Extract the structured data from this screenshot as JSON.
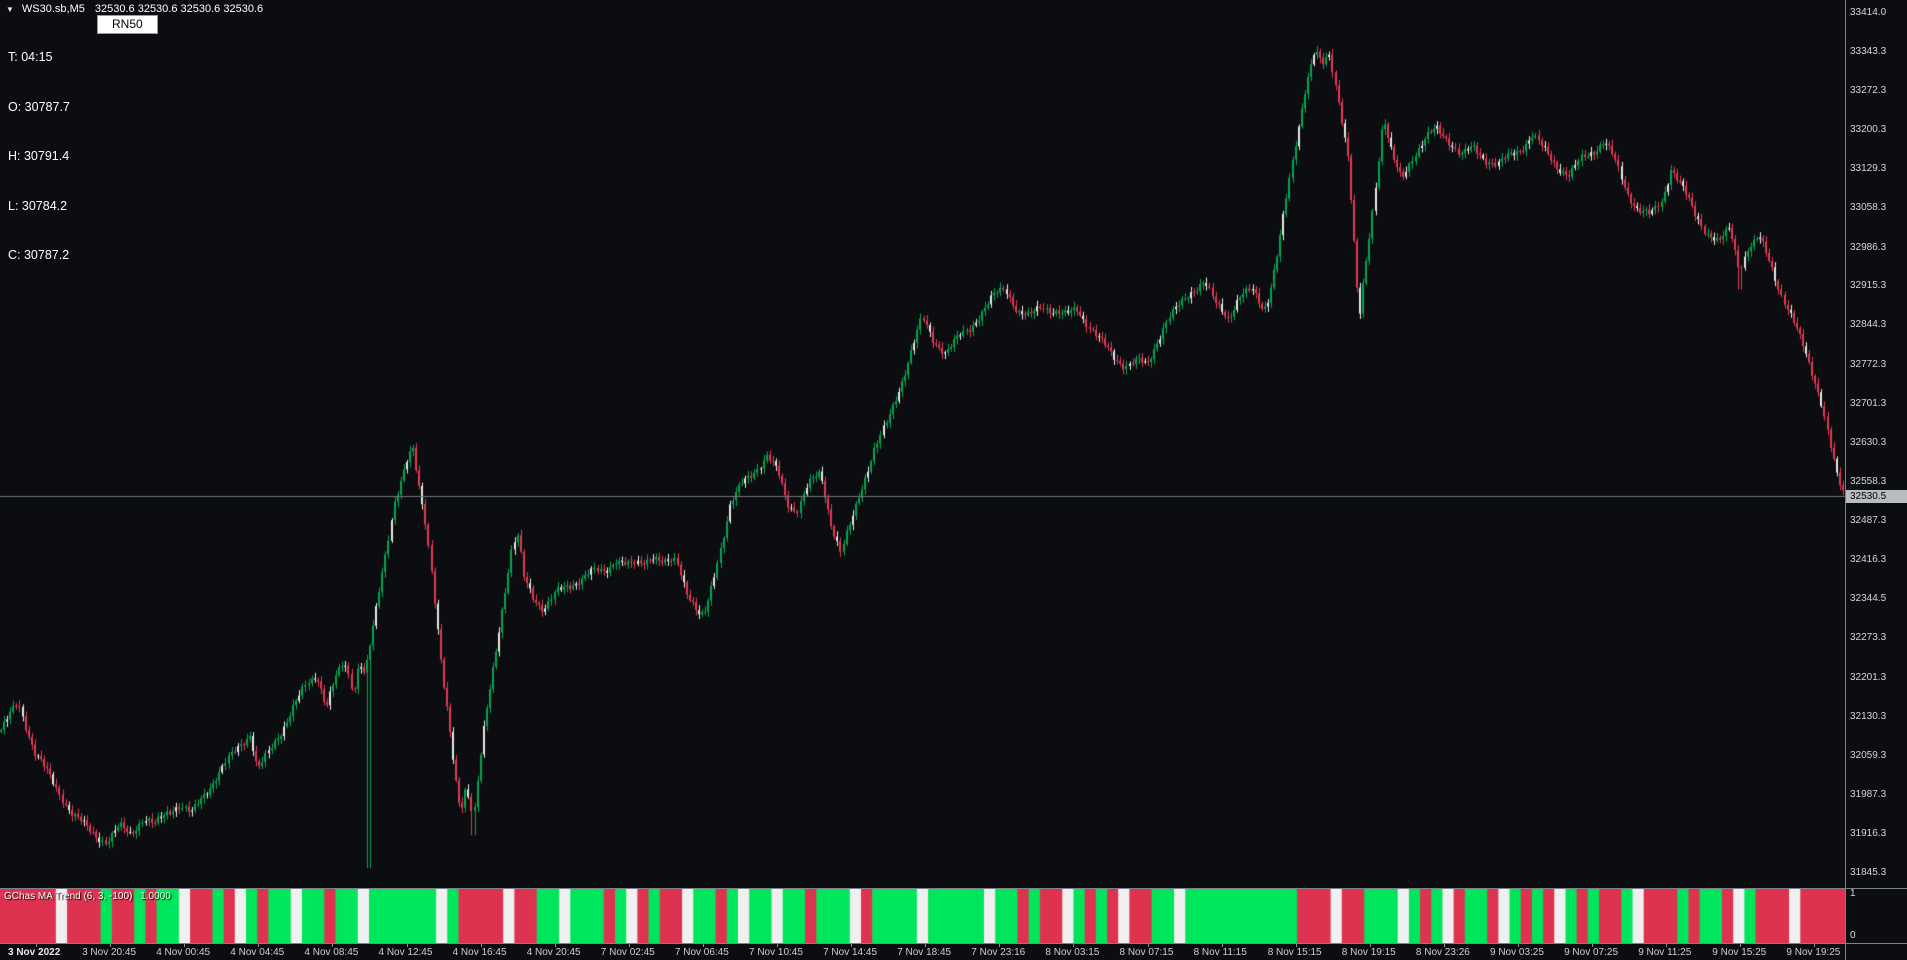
{
  "window": {
    "collapse_icon": "triangle-down-icon",
    "title_symbol": "WS30.sb,M5",
    "title_quotes": "32530.6 32530.6 32530.6 32530.6"
  },
  "info_panel": {
    "time": "T: 04:15",
    "open": "O: 30787.7",
    "high": "H: 30791.4",
    "low": "L: 30784.2",
    "close": "C: 30787.2"
  },
  "overlay_label": {
    "text": "RN50"
  },
  "price_axis": {
    "labels": [
      "33414.0",
      "33343.3",
      "33272.3",
      "33200.3",
      "33129.3",
      "33058.3",
      "32986.3",
      "32915.3",
      "32844.3",
      "32772.3",
      "32701.3",
      "32630.3",
      "32558.3",
      "32487.3",
      "32416.3",
      "32344.5",
      "32273.3",
      "32201.3",
      "32130.3",
      "32059.3",
      "31987.3",
      "31916.3",
      "31845.3"
    ],
    "current_price_label": "32530.5"
  },
  "time_axis": {
    "labels": [
      "3 Nov 2022",
      "3 Nov 20:45",
      "4 Nov 00:45",
      "4 Nov 04:45",
      "4 Nov 08:45",
      "4 Nov 12:45",
      "4 Nov 16:45",
      "4 Nov 20:45",
      "7 Nov 02:45",
      "7 Nov 06:45",
      "7 Nov 10:45",
      "7 Nov 14:45",
      "7 Nov 18:45",
      "7 Nov 23:16",
      "8 Nov 03:15",
      "8 Nov 07:15",
      "8 Nov 11:15",
      "8 Nov 15:15",
      "8 Nov 19:15",
      "8 Nov 23:26",
      "9 Nov 03:25",
      "9 Nov 07:25",
      "9 Nov 11:25",
      "9 Nov 15:25",
      "9 Nov 19:25"
    ]
  },
  "indicator": {
    "label": "GChas MA Trend (6, 3, -100)",
    "value": "1.0000",
    "scale_top": "1",
    "scale_bottom": "0",
    "pattern": "rrrrrwrrrgrrgrggwrrgrwgrggwggrggwggggggwgrrrrwrrggwgggrgwrgrrwggrgwggwggrgggwrggggwgggggwggrgrrwgrgrwrrggwggggggggggrrrwrrgggwgrgwrggrwgrgrwgrgrrgwrrrgrggrwgrrrwrrrr",
    "colors": {
      "bull": "#00e65c",
      "bear": "#dd3350",
      "flat": "#f0f0f0"
    }
  },
  "chart_data": {
    "type": "candlestick",
    "symbol": "WS30.sb",
    "timeframe": "M5",
    "title": "WS30.sb,M5",
    "ylim": [
      31816,
      33436
    ],
    "current_price": 32530.5,
    "x_range": [
      "3 Nov 2022",
      "9 Nov 19:25"
    ],
    "colors": {
      "up": "#00a651",
      "down": "#e23a52",
      "neutral": "#e9e9e9",
      "price_line": "#70757c"
    },
    "spikes": [
      {
        "x": 0.2,
        "low": 31852
      },
      {
        "x": 0.058,
        "low": 31893
      },
      {
        "x": 0.257,
        "low": 31912
      },
      {
        "x": 0.943,
        "low": 32908
      }
    ],
    "price_path": [
      [
        0.0,
        32100
      ],
      [
        0.01,
        32150
      ],
      [
        0.019,
        32060
      ],
      [
        0.029,
        32005
      ],
      [
        0.039,
        31955
      ],
      [
        0.049,
        31925
      ],
      [
        0.058,
        31905
      ],
      [
        0.065,
        31930
      ],
      [
        0.071,
        31915
      ],
      [
        0.078,
        31940
      ],
      [
        0.084,
        31925
      ],
      [
        0.091,
        31950
      ],
      [
        0.097,
        31965
      ],
      [
        0.104,
        31950
      ],
      [
        0.11,
        31985
      ],
      [
        0.117,
        32020
      ],
      [
        0.123,
        32050
      ],
      [
        0.13,
        32080
      ],
      [
        0.136,
        32100
      ],
      [
        0.14,
        32030
      ],
      [
        0.146,
        32060
      ],
      [
        0.153,
        32100
      ],
      [
        0.159,
        32140
      ],
      [
        0.166,
        32180
      ],
      [
        0.172,
        32205
      ],
      [
        0.177,
        32150
      ],
      [
        0.182,
        32200
      ],
      [
        0.187,
        32230
      ],
      [
        0.192,
        32180
      ],
      [
        0.195,
        32240
      ],
      [
        0.198,
        32210
      ],
      [
        0.203,
        32300
      ],
      [
        0.208,
        32400
      ],
      [
        0.214,
        32520
      ],
      [
        0.221,
        32590
      ],
      [
        0.224,
        32610
      ],
      [
        0.227,
        32550
      ],
      [
        0.231,
        32480
      ],
      [
        0.234,
        32400
      ],
      [
        0.237,
        32300
      ],
      [
        0.24,
        32200
      ],
      [
        0.244,
        32100
      ],
      [
        0.247,
        32020
      ],
      [
        0.25,
        31960
      ],
      [
        0.253,
        32010
      ],
      [
        0.257,
        31950
      ],
      [
        0.26,
        32040
      ],
      [
        0.263,
        32120
      ],
      [
        0.268,
        32230
      ],
      [
        0.273,
        32340
      ],
      [
        0.278,
        32440
      ],
      [
        0.281,
        32455
      ],
      [
        0.284,
        32380
      ],
      [
        0.289,
        32345
      ],
      [
        0.295,
        32320
      ],
      [
        0.302,
        32350
      ],
      [
        0.308,
        32365
      ],
      [
        0.315,
        32380
      ],
      [
        0.321,
        32395
      ],
      [
        0.328,
        32400
      ],
      [
        0.334,
        32420
      ],
      [
        0.341,
        32405
      ],
      [
        0.347,
        32410
      ],
      [
        0.354,
        32420
      ],
      [
        0.36,
        32400
      ],
      [
        0.367,
        32410
      ],
      [
        0.373,
        32350
      ],
      [
        0.38,
        32305
      ],
      [
        0.383,
        32320
      ],
      [
        0.39,
        32430
      ],
      [
        0.396,
        32520
      ],
      [
        0.403,
        32560
      ],
      [
        0.409,
        32580
      ],
      [
        0.416,
        32605
      ],
      [
        0.422,
        32570
      ],
      [
        0.427,
        32515
      ],
      [
        0.432,
        32500
      ],
      [
        0.438,
        32545
      ],
      [
        0.445,
        32570
      ],
      [
        0.451,
        32480
      ],
      [
        0.456,
        32430
      ],
      [
        0.461,
        32480
      ],
      [
        0.468,
        32560
      ],
      [
        0.474,
        32620
      ],
      [
        0.481,
        32665
      ],
      [
        0.487,
        32720
      ],
      [
        0.494,
        32790
      ],
      [
        0.5,
        32850
      ],
      [
        0.506,
        32810
      ],
      [
        0.513,
        32790
      ],
      [
        0.519,
        32815
      ],
      [
        0.526,
        32840
      ],
      [
        0.532,
        32870
      ],
      [
        0.539,
        32900
      ],
      [
        0.545,
        32915
      ],
      [
        0.552,
        32870
      ],
      [
        0.558,
        32855
      ],
      [
        0.565,
        32875
      ],
      [
        0.571,
        32865
      ],
      [
        0.578,
        32855
      ],
      [
        0.584,
        32870
      ],
      [
        0.591,
        32840
      ],
      [
        0.597,
        32815
      ],
      [
        0.604,
        32790
      ],
      [
        0.61,
        32775
      ],
      [
        0.617,
        32780
      ],
      [
        0.622,
        32770
      ],
      [
        0.627,
        32810
      ],
      [
        0.633,
        32850
      ],
      [
        0.64,
        32875
      ],
      [
        0.646,
        32900
      ],
      [
        0.653,
        32920
      ],
      [
        0.659,
        32880
      ],
      [
        0.666,
        32860
      ],
      [
        0.672,
        32900
      ],
      [
        0.679,
        32910
      ],
      [
        0.685,
        32875
      ],
      [
        0.688,
        32900
      ],
      [
        0.693,
        32980
      ],
      [
        0.698,
        33080
      ],
      [
        0.703,
        33180
      ],
      [
        0.708,
        33280
      ],
      [
        0.713,
        33340
      ],
      [
        0.717,
        33310
      ],
      [
        0.721,
        33330
      ],
      [
        0.726,
        33250
      ],
      [
        0.731,
        33150
      ],
      [
        0.734,
        33000
      ],
      [
        0.737,
        32850
      ],
      [
        0.74,
        32940
      ],
      [
        0.745,
        33080
      ],
      [
        0.75,
        33230
      ],
      [
        0.755,
        33150
      ],
      [
        0.76,
        33110
      ],
      [
        0.766,
        33150
      ],
      [
        0.773,
        33180
      ],
      [
        0.779,
        33195
      ],
      [
        0.786,
        33175
      ],
      [
        0.792,
        33150
      ],
      [
        0.799,
        33165
      ],
      [
        0.805,
        33150
      ],
      [
        0.812,
        33140
      ],
      [
        0.818,
        33155
      ],
      [
        0.825,
        33170
      ],
      [
        0.831,
        33190
      ],
      [
        0.838,
        33155
      ],
      [
        0.844,
        33130
      ],
      [
        0.851,
        33110
      ],
      [
        0.857,
        33140
      ],
      [
        0.864,
        33160
      ],
      [
        0.87,
        33180
      ],
      [
        0.875,
        33150
      ],
      [
        0.882,
        33090
      ],
      [
        0.888,
        33060
      ],
      [
        0.895,
        33045
      ],
      [
        0.901,
        33070
      ],
      [
        0.906,
        33130
      ],
      [
        0.912,
        33090
      ],
      [
        0.919,
        33040
      ],
      [
        0.925,
        33010
      ],
      [
        0.932,
        32990
      ],
      [
        0.938,
        33020
      ],
      [
        0.943,
        32950
      ],
      [
        0.948,
        32990
      ],
      [
        0.954,
        33005
      ],
      [
        0.96,
        32960
      ],
      [
        0.966,
        32900
      ],
      [
        0.973,
        32840
      ],
      [
        0.979,
        32790
      ],
      [
        0.984,
        32740
      ],
      [
        0.988,
        32690
      ],
      [
        0.992,
        32620
      ],
      [
        0.996,
        32560
      ],
      [
        1.0,
        32532
      ]
    ]
  }
}
